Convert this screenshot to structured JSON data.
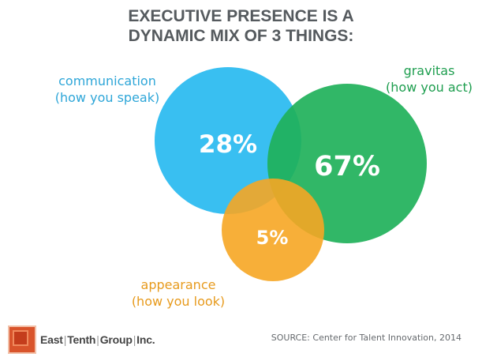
{
  "title": {
    "line1": "EXECUTIVE PRESENCE IS A",
    "line2": "DYNAMIC MIX OF 3 THINGS:"
  },
  "circles": {
    "communication": {
      "name": "communication",
      "subtitle": "(how you speak)",
      "percent": "28%",
      "value": 28,
      "color": "#2ebcf0"
    },
    "gravitas": {
      "name": "gravitas",
      "subtitle": "(how you act)",
      "percent": "67%",
      "value": 67,
      "color": "#1fb15a"
    },
    "appearance": {
      "name": "appearance",
      "subtitle": "(how you look)",
      "percent": "5%",
      "value": 5,
      "color": "#f6a623"
    }
  },
  "colors": {
    "title": "#555a5e",
    "communication_label": "#2ea6d8",
    "gravitas_label": "#1e9e4f",
    "appearance_label": "#e79a1c"
  },
  "logo": {
    "part1": "East",
    "part2": "Tenth",
    "part3": "Group",
    "part4": "Inc."
  },
  "source": "SOURCE: Center for Talent Innovation, 2014"
}
